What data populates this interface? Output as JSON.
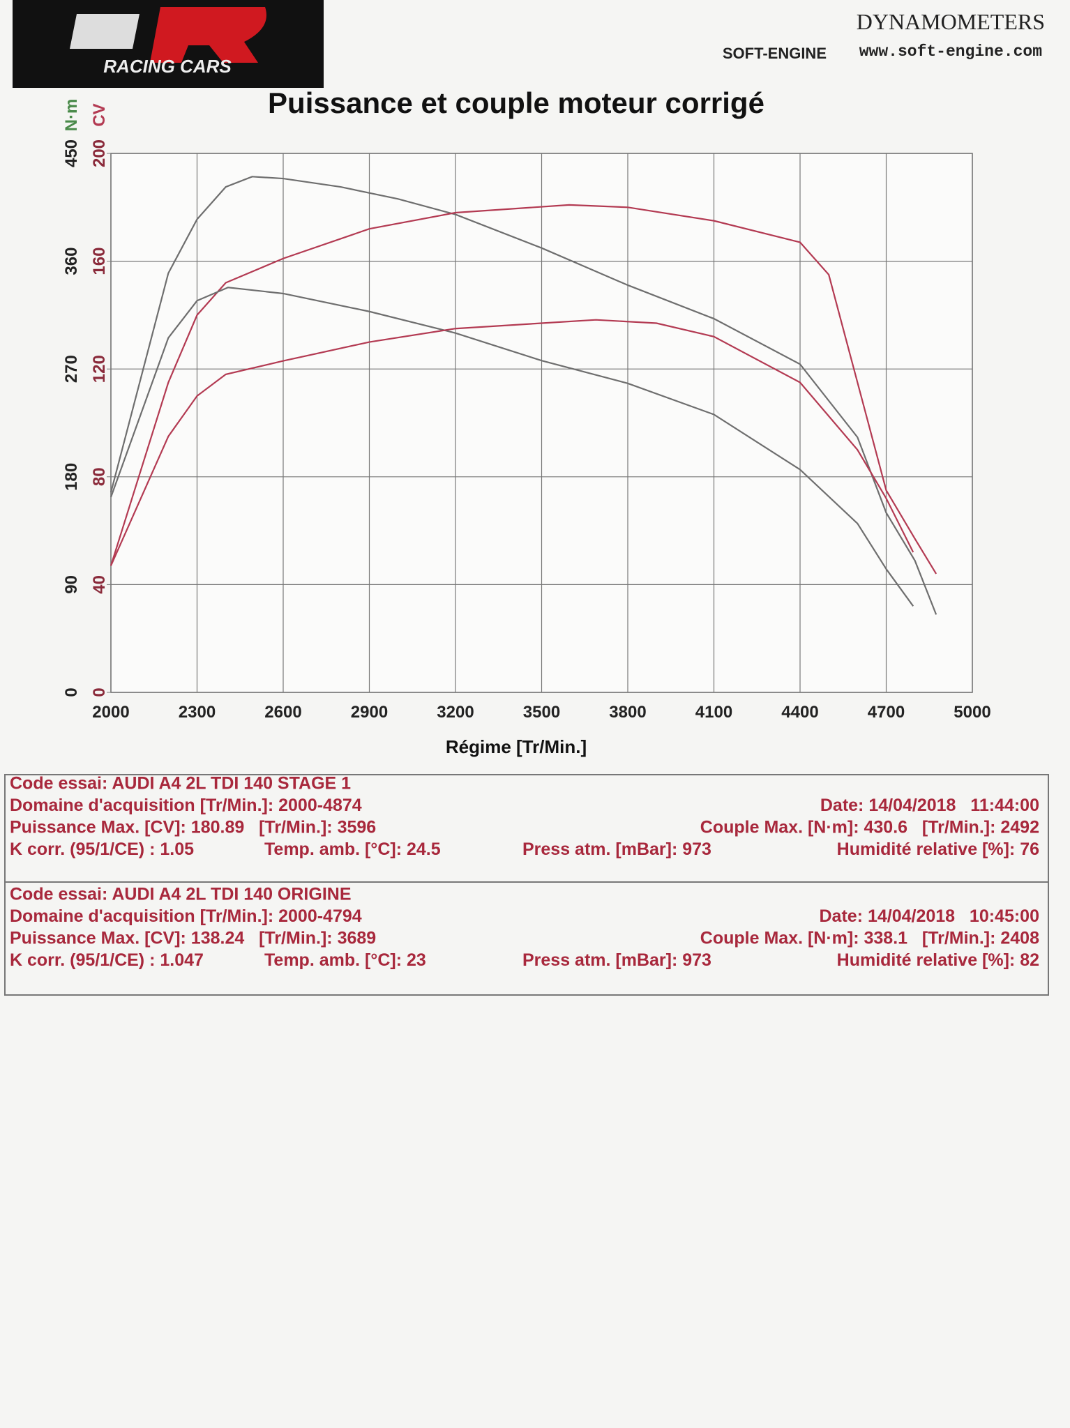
{
  "header": {
    "logo": "RACING CARS",
    "brand": "DYNAMOMETERS",
    "brand_mark": "SOFT-ENGINE",
    "url": "www.soft-engine.com"
  },
  "chart_data": {
    "type": "line",
    "title": "Puissance et couple moteur corrigé",
    "xlabel": "Régime [Tr/Min.]",
    "ylabel": "N·m",
    "y2label": "CV",
    "xlim": [
      2000,
      5000
    ],
    "xticks": [
      2000,
      2300,
      2600,
      2900,
      3200,
      3500,
      3800,
      4100,
      4400,
      4700,
      5000
    ],
    "ylim": [
      0,
      450
    ],
    "yticks": [
      0,
      90,
      180,
      270,
      360,
      450
    ],
    "y2lim": [
      0,
      200
    ],
    "y2ticks": [
      0,
      40,
      80,
      120,
      160,
      200
    ],
    "grid": true,
    "series": [
      {
        "color": "#6e6e6e",
        "x": [
          2000,
          2200,
          2300,
          2400,
          2492,
          2600,
          2800,
          3000,
          3200,
          3500,
          3800,
          4100,
          4400,
          4600,
          4700,
          4800,
          4874
        ],
        "values": [
          167,
          350,
          395,
          422,
          430.6,
          429,
          422,
          412,
          399,
          371,
          340,
          312,
          274,
          213,
          150,
          110,
          65
        ]
      },
      {
        "color": "#b33a52",
        "axis": "y2",
        "x": [
          2000,
          2200,
          2300,
          2400,
          2600,
          2900,
          3200,
          3596,
          3800,
          4100,
          4400,
          4500,
          4600,
          4700,
          4800,
          4874
        ],
        "values": [
          47,
          115,
          140,
          152,
          161,
          172,
          178,
          180.89,
          180,
          175,
          167,
          155,
          115,
          75,
          57,
          44
        ]
      },
      {
        "color": "#6e6e6e",
        "x": [
          2000,
          2200,
          2300,
          2408,
          2600,
          2900,
          3200,
          3500,
          3800,
          4100,
          4400,
          4600,
          4700,
          4794
        ],
        "values": [
          163,
          296,
          327,
          338.1,
          333,
          318,
          300,
          277,
          258,
          232,
          186,
          141,
          103,
          72
        ]
      },
      {
        "color": "#b33a52",
        "axis": "y2",
        "x": [
          2000,
          2200,
          2300,
          2400,
          2600,
          2900,
          3200,
          3500,
          3689,
          3900,
          4100,
          4400,
          4600,
          4700,
          4794
        ],
        "values": [
          47,
          95,
          110,
          118,
          123,
          130,
          135,
          137,
          138.24,
          137,
          132,
          115,
          90,
          72,
          52
        ]
      }
    ]
  },
  "info": [
    {
      "code": "Code essai: AUDI A4 2L TDI 140 STAGE 1",
      "domaine": "Domaine d'acquisition [Tr/Min.]: 2000-4874",
      "date": "Date: 14/04/2018   11:44:00",
      "puissance": "Puissance Max. [CV]: 180.89   [Tr/Min.]: 3596",
      "couple": "Couple Max. [N·m]: 430.6   [Tr/Min.]: 2492",
      "kcorr": "K corr. (95/1/CE) : 1.05",
      "temp": "Temp. amb. [°C]: 24.5",
      "press": "Press atm. [mBar]: 973",
      "humidite": "Humidité relative [%]: 76"
    },
    {
      "code": "Code essai: AUDI A4 2L TDI 140 ORIGINE",
      "domaine": "Domaine d'acquisition [Tr/Min.]: 2000-4794",
      "date": "Date: 14/04/2018   10:45:00",
      "puissance": "Puissance Max. [CV]: 138.24   [Tr/Min.]: 3689",
      "couple": "Couple Max. [N·m]: 338.1   [Tr/Min.]: 2408",
      "kcorr": "K corr. (95/1/CE) : 1.047",
      "temp": "Temp. amb. [°C]: 23",
      "press": "Press atm. [mBar]: 973",
      "humidite": "Humidité relative [%]: 82"
    }
  ]
}
